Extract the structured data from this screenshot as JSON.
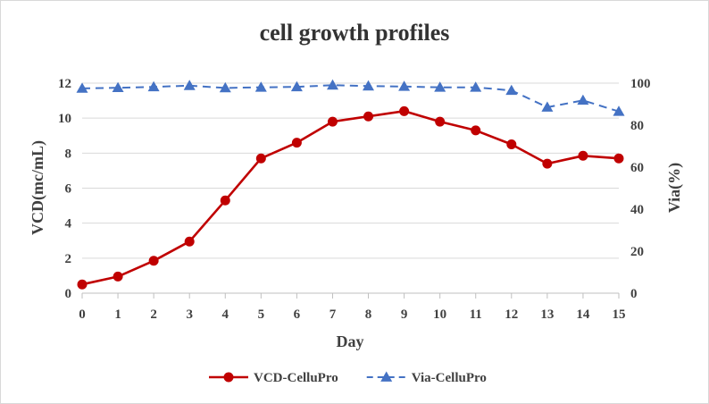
{
  "chart_data": {
    "type": "line",
    "title": "cell growth profiles",
    "xlabel": "Day",
    "ylabel_left": "VCD(mc/mL)",
    "ylabel_right": "Via(%)",
    "x": [
      0,
      1,
      2,
      3,
      4,
      5,
      6,
      7,
      8,
      9,
      10,
      11,
      12,
      13,
      14,
      15
    ],
    "x_ticks": [
      "0",
      "1",
      "2",
      "3",
      "4",
      "5",
      "6",
      "7",
      "8",
      "9",
      "10",
      "11",
      "12",
      "13",
      "14",
      "15"
    ],
    "ylim_left": [
      0,
      12
    ],
    "yticks_left": [
      "0",
      "2",
      "4",
      "6",
      "8",
      "10",
      "12"
    ],
    "ylim_right": [
      0,
      100
    ],
    "yticks_right": [
      "0",
      "20",
      "40",
      "60",
      "80",
      "100"
    ],
    "grid": "horizontal",
    "legend_position": "bottom",
    "series": [
      {
        "name": "VCD-CelluPro",
        "axis": "left",
        "color": "#c00000",
        "style": "solid",
        "marker": "circle",
        "values": [
          0.5,
          0.95,
          1.85,
          2.95,
          5.3,
          7.7,
          8.6,
          9.8,
          10.1,
          10.4,
          9.8,
          9.3,
          8.5,
          7.4,
          7.85,
          7.7
        ]
      },
      {
        "name": "Via-CelluPro",
        "axis": "right",
        "color": "#4472c4",
        "style": "dashed",
        "marker": "triangle",
        "values": [
          97.5,
          97.8,
          98.2,
          98.8,
          97.7,
          98.0,
          98.2,
          99.0,
          98.6,
          98.4,
          98.0,
          98.0,
          96.5,
          88.5,
          91.8,
          86.5
        ]
      }
    ]
  }
}
